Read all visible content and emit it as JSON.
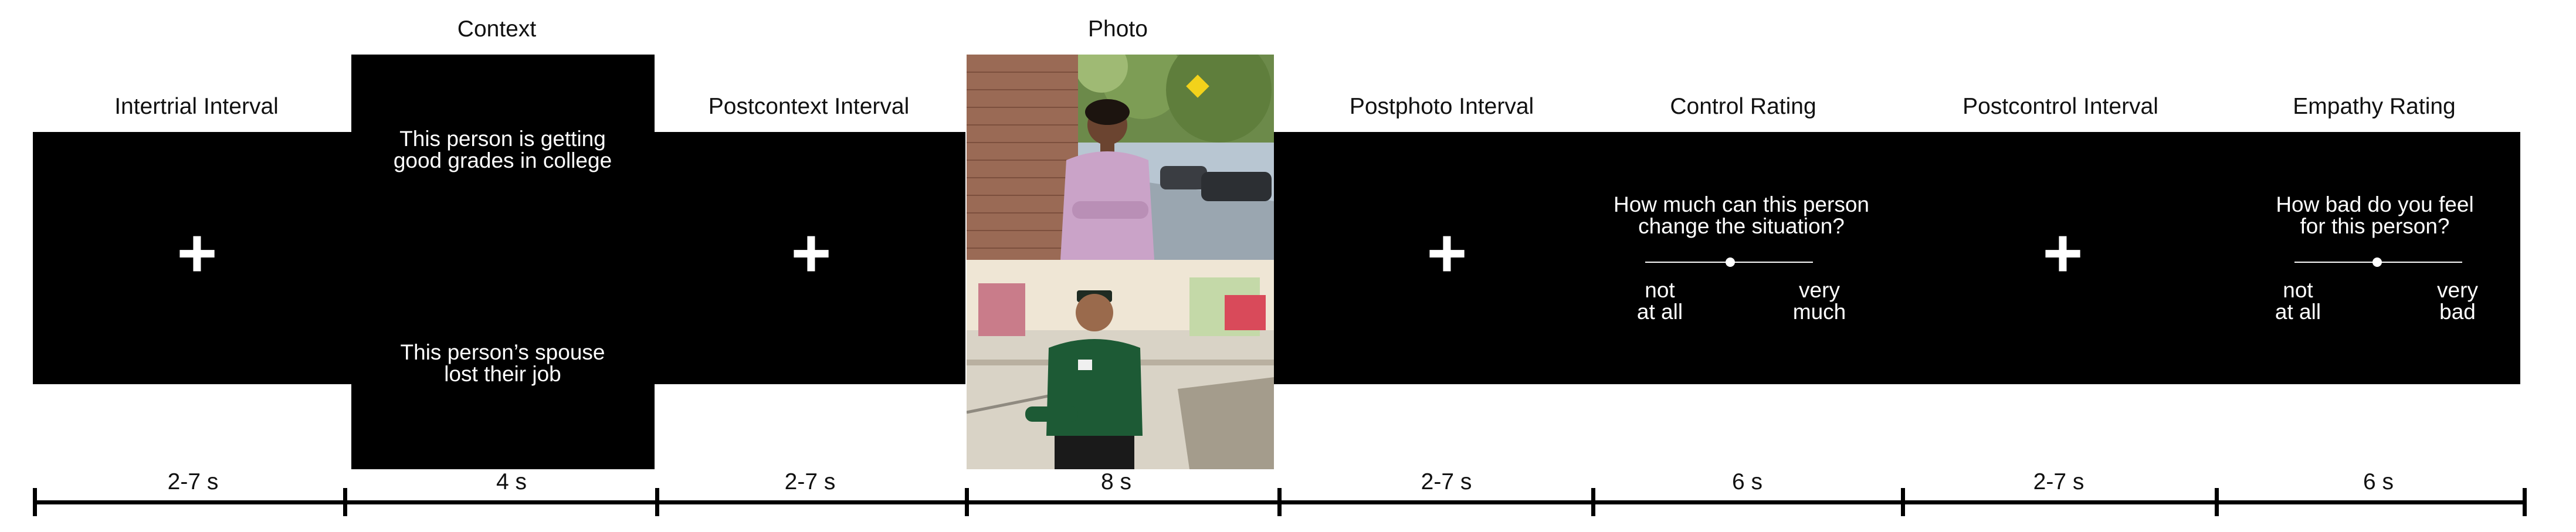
{
  "stages": [
    {
      "label": "Intertrial Interval",
      "duration": "2-7 s",
      "fixation": "+"
    },
    {
      "label": "Context",
      "duration": "4 s",
      "context_top": [
        "This person is getting",
        "good grades in college"
      ],
      "context_bottom": [
        "This person’s spouse",
        "lost their job"
      ]
    },
    {
      "label": "Postcontext Interval",
      "duration": "2-7 s",
      "fixation": "+"
    },
    {
      "label": "Photo",
      "duration": "8 s"
    },
    {
      "label": "Postphoto Interval",
      "duration": "2-7 s",
      "fixation": "+"
    },
    {
      "label": "Control Rating",
      "duration": "6 s",
      "question": [
        "How much can this person",
        "change the situation?"
      ],
      "anchor_left": [
        "not",
        "at all"
      ],
      "anchor_right": [
        "very",
        "much"
      ]
    },
    {
      "label": "Postcontrol Interval",
      "duration": "2-7 s",
      "fixation": "+"
    },
    {
      "label": "Empathy Rating",
      "duration": "6 s",
      "question": [
        "How bad do you feel",
        "for this person?"
      ],
      "anchor_left": [
        "not",
        "at all"
      ],
      "anchor_right": [
        "very",
        "bad"
      ]
    }
  ]
}
